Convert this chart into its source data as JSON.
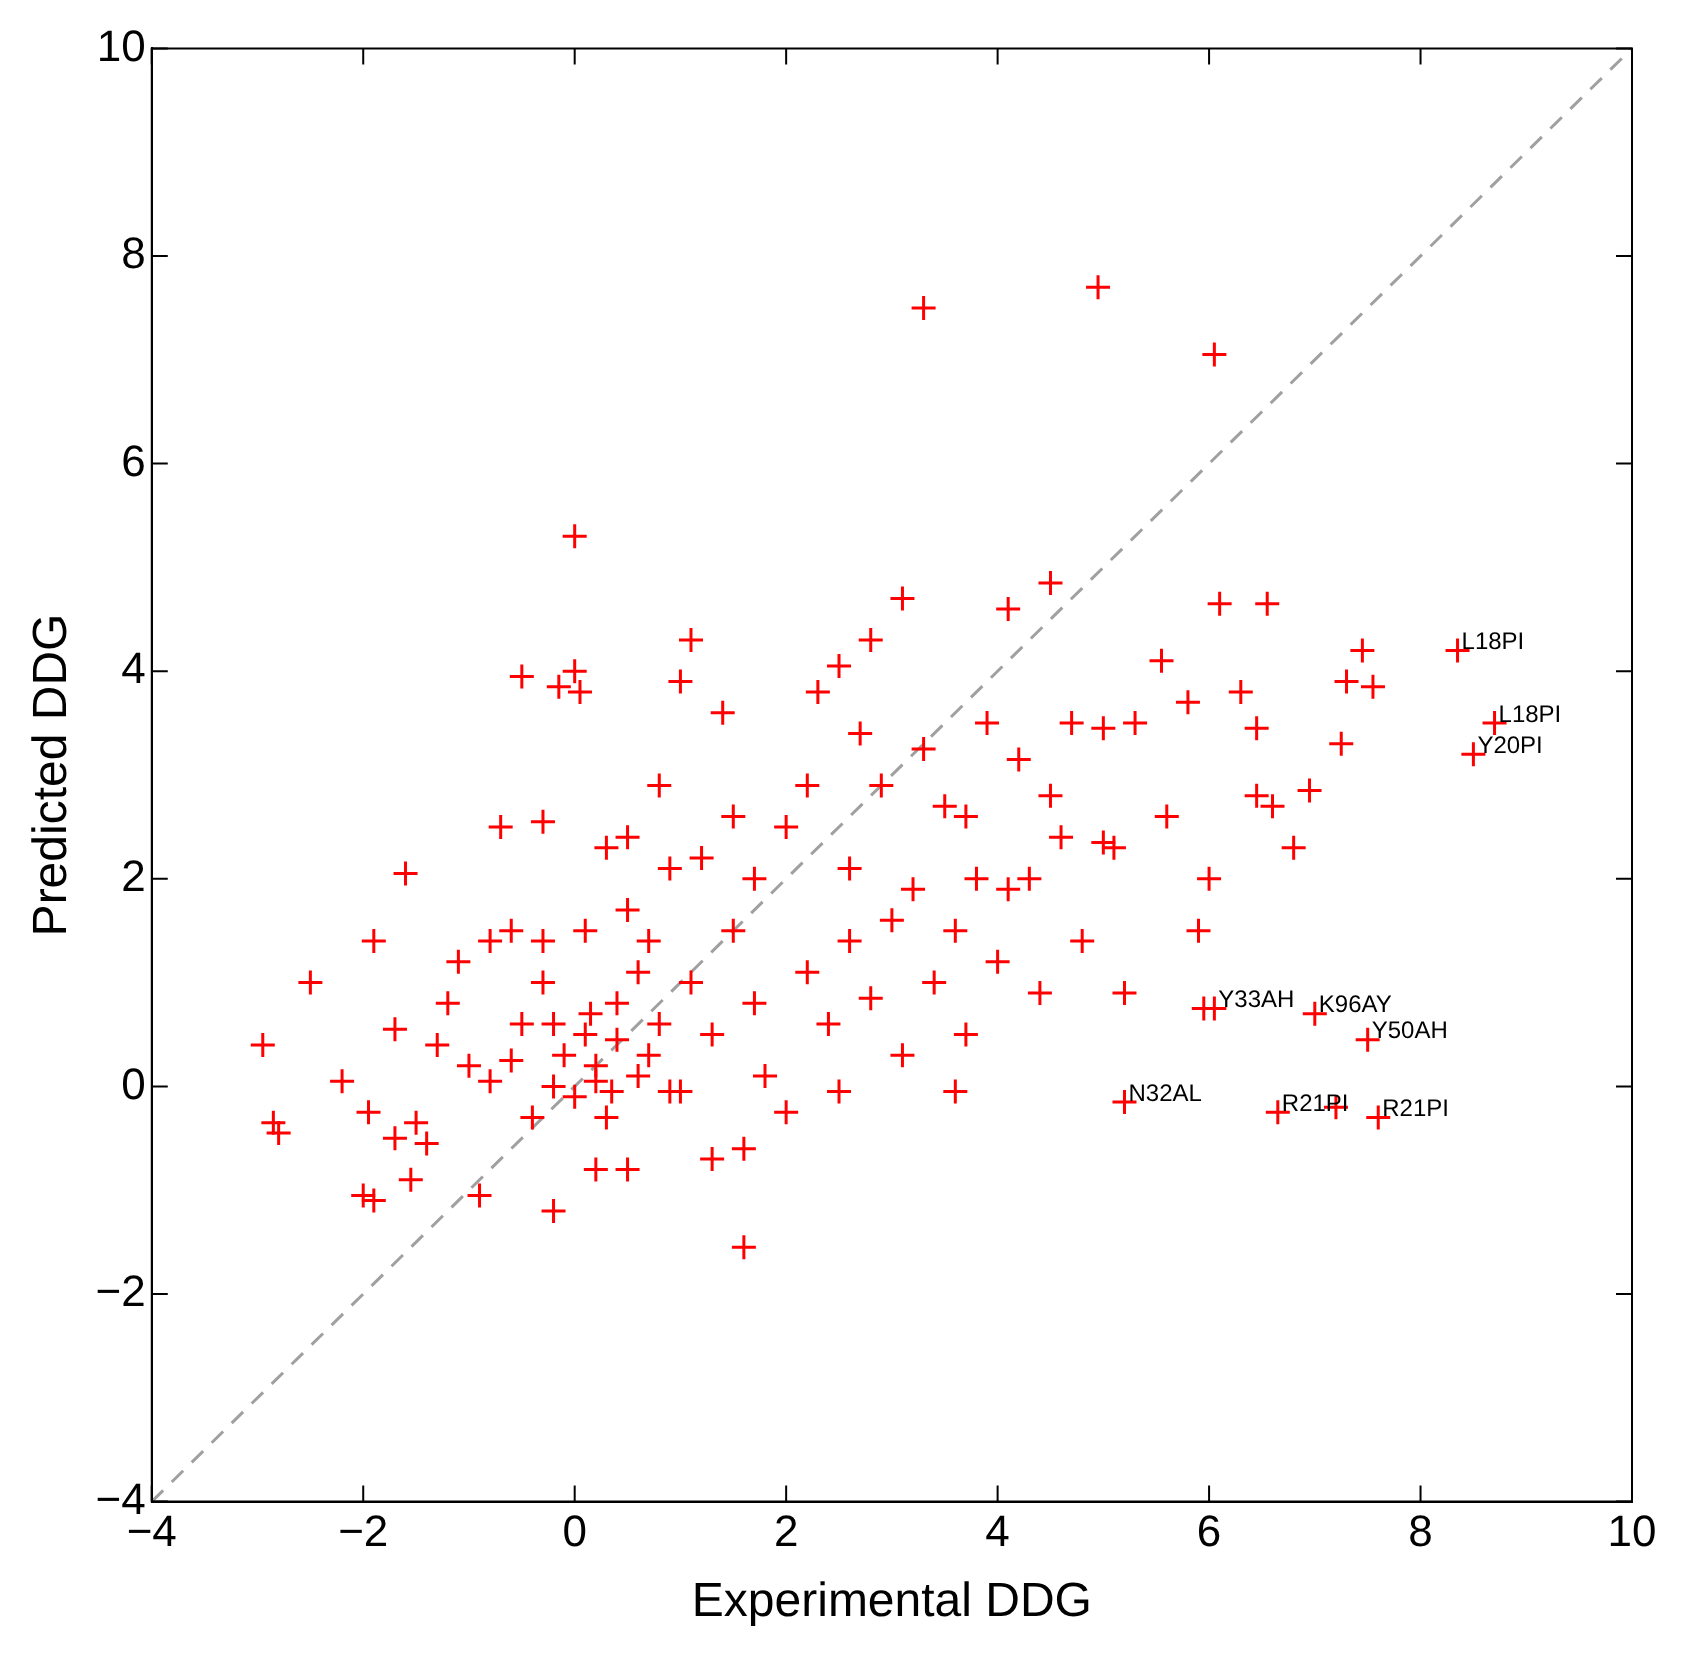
{
  "chart_data": {
    "type": "scatter",
    "xlabel": "Experimental DDG",
    "ylabel": "Predicted DDG",
    "xlim": [
      -4,
      10
    ],
    "ylim": [
      -4,
      10
    ],
    "xticks": [
      -4,
      -2,
      0,
      2,
      4,
      6,
      8,
      10
    ],
    "yticks": [
      -4,
      -2,
      0,
      2,
      4,
      6,
      8,
      10
    ],
    "grid": false,
    "legend": false,
    "marker": "cross",
    "series": [
      {
        "type": "scatter",
        "color": "#ff0000",
        "x": [
          -2.95,
          -2.85,
          -2.8,
          -2.5,
          -2.2,
          -2.0,
          -1.9,
          -1.9,
          -1.95,
          -1.7,
          -1.6,
          -1.7,
          -1.55,
          -1.5,
          -1.4,
          -1.3,
          -1.2,
          -1.1,
          -1.0,
          -0.9,
          -0.8,
          -0.7,
          -0.6,
          -0.5,
          -0.5,
          -0.4,
          -0.3,
          -0.3,
          -0.2,
          -0.2,
          -0.15,
          0.0,
          0.0,
          0.05,
          0.1,
          0.1,
          0.2,
          0.3,
          0.4,
          0.5,
          0.5,
          0.6,
          0.7,
          0.8,
          0.9,
          1.0,
          1.1,
          1.2,
          1.3,
          1.5,
          1.6,
          1.6,
          1.7,
          1.8,
          2.0,
          2.2,
          2.3,
          2.4,
          2.5,
          2.6,
          2.8,
          2.9,
          3.0,
          3.1,
          3.1,
          3.3,
          3.3,
          3.4,
          3.5,
          3.6,
          3.7,
          3.8,
          4.0,
          4.1,
          4.2,
          4.3,
          4.5,
          4.6,
          4.7,
          4.8,
          4.95,
          5.0,
          5.1,
          5.2,
          5.3,
          5.55,
          5.6,
          5.8,
          5.9,
          5.95,
          6.05,
          6.05,
          6.1,
          6.3,
          6.45,
          6.55,
          6.6,
          6.8,
          7.0,
          7.3,
          7.45,
          7.5,
          7.55,
          7.6,
          6.65,
          7.2,
          5.2,
          8.35,
          8.7,
          8.5,
          6.45,
          6.95,
          7.25,
          6.0,
          4.5,
          3.9,
          2.2,
          1.5,
          0.3,
          -0.6,
          0.2,
          0.4,
          0.6,
          0.8,
          1.0,
          0.0,
          -0.1,
          0.35,
          0.15,
          0.5,
          1.1,
          2.0,
          2.5,
          2.8,
          3.2,
          1.3,
          0.2,
          -0.8,
          -0.3,
          1.7,
          2.6,
          3.6,
          4.1,
          0.9,
          -0.2,
          0.7,
          1.4,
          2.7,
          3.7,
          4.4,
          5.0
        ],
        "values": [
          0.4,
          -0.35,
          -0.45,
          1.0,
          0.05,
          -1.05,
          -1.1,
          1.4,
          -0.25,
          0.55,
          2.05,
          -0.5,
          -0.9,
          -0.35,
          -0.55,
          0.4,
          0.8,
          1.2,
          0.2,
          -1.05,
          0.05,
          2.5,
          1.5,
          3.95,
          0.6,
          -0.3,
          2.55,
          1.0,
          -1.2,
          0.0,
          3.85,
          4.0,
          5.3,
          3.8,
          1.5,
          0.5,
          0.2,
          -0.3,
          0.8,
          2.4,
          -0.8,
          1.1,
          0.3,
          2.9,
          -0.05,
          3.9,
          4.3,
          2.2,
          0.5,
          1.5,
          -0.6,
          -1.55,
          2.0,
          0.1,
          2.5,
          1.1,
          3.8,
          0.6,
          4.05,
          2.1,
          4.3,
          2.9,
          1.6,
          4.7,
          0.3,
          7.5,
          3.25,
          1.0,
          2.7,
          -0.05,
          0.5,
          2.0,
          1.2,
          4.6,
          3.15,
          2.0,
          4.85,
          2.4,
          3.5,
          1.4,
          7.7,
          3.45,
          2.3,
          0.9,
          3.5,
          4.1,
          2.6,
          3.7,
          1.5,
          0.75,
          0.75,
          7.05,
          4.65,
          3.8,
          2.8,
          4.65,
          2.7,
          2.3,
          0.7,
          3.9,
          4.2,
          0.45,
          3.85,
          -0.3,
          -0.25,
          -0.2,
          -0.15,
          4.2,
          3.5,
          3.2,
          3.45,
          2.85,
          3.3,
          2.0,
          2.8,
          3.5,
          2.9,
          2.6,
          2.3,
          0.25,
          0.05,
          0.45,
          0.1,
          0.6,
          -0.05,
          -0.1,
          0.3,
          -0.05,
          0.7,
          1.7,
          1.0,
          -0.25,
          -0.05,
          0.85,
          1.9,
          -0.7,
          -0.8,
          1.4,
          1.4,
          0.8,
          1.4,
          1.5,
          1.9,
          2.1,
          0.6,
          1.4,
          3.6,
          3.4,
          2.6,
          0.9,
          2.35
        ]
      },
      {
        "type": "line",
        "color": "#a0a0a0",
        "line_style": "dashed",
        "marker": "none",
        "x": [
          -4,
          10
        ],
        "values": [
          -4,
          10
        ]
      }
    ],
    "annotations": [
      {
        "text": "L18PI",
        "x": 8.35,
        "y": 4.2
      },
      {
        "text": "L18PI",
        "x": 8.7,
        "y": 3.5
      },
      {
        "text": "Y20PI",
        "x": 8.5,
        "y": 3.2
      },
      {
        "text": "Y33AH",
        "x": 6.05,
        "y": 0.75
      },
      {
        "text": "K96AY",
        "x": 7.0,
        "y": 0.7
      },
      {
        "text": "Y50AH",
        "x": 7.5,
        "y": 0.45
      },
      {
        "text": "N32AL",
        "x": 5.2,
        "y": -0.15
      },
      {
        "text": "R21PI",
        "x": 6.65,
        "y": -0.25
      },
      {
        "text": "R21PI",
        "x": 7.6,
        "y": -0.3
      }
    ]
  }
}
